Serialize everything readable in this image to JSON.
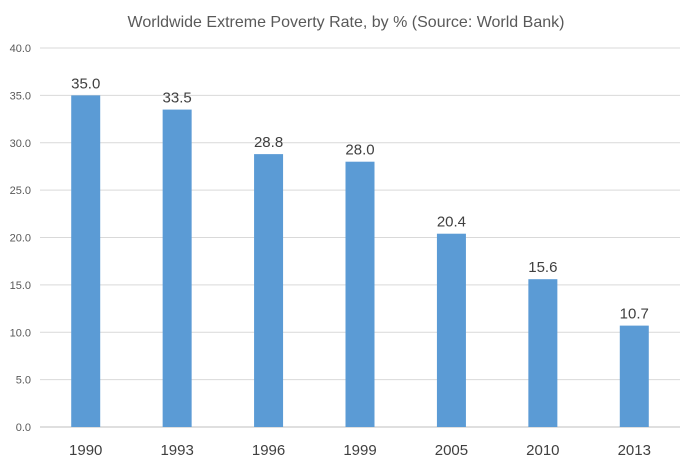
{
  "chart_data": {
    "type": "bar",
    "title": "Worldwide Extreme Poverty Rate, by % (Source: World Bank)",
    "categories": [
      "1990",
      "1993",
      "1996",
      "1999",
      "2005",
      "2010",
      "2013"
    ],
    "values": [
      35.0,
      33.5,
      28.8,
      28.0,
      20.4,
      15.6,
      10.7
    ],
    "data_labels": [
      "35.0",
      "33.5",
      "28.8",
      "28.0",
      "20.4",
      "15.6",
      "10.7"
    ],
    "ylim": [
      0,
      40
    ],
    "yticks": [
      "0.0",
      "5.0",
      "10.0",
      "15.0",
      "20.0",
      "25.0",
      "30.0",
      "35.0",
      "40.0"
    ],
    "grid": true,
    "legend": "none",
    "bar_color": "#5b9bd5"
  }
}
